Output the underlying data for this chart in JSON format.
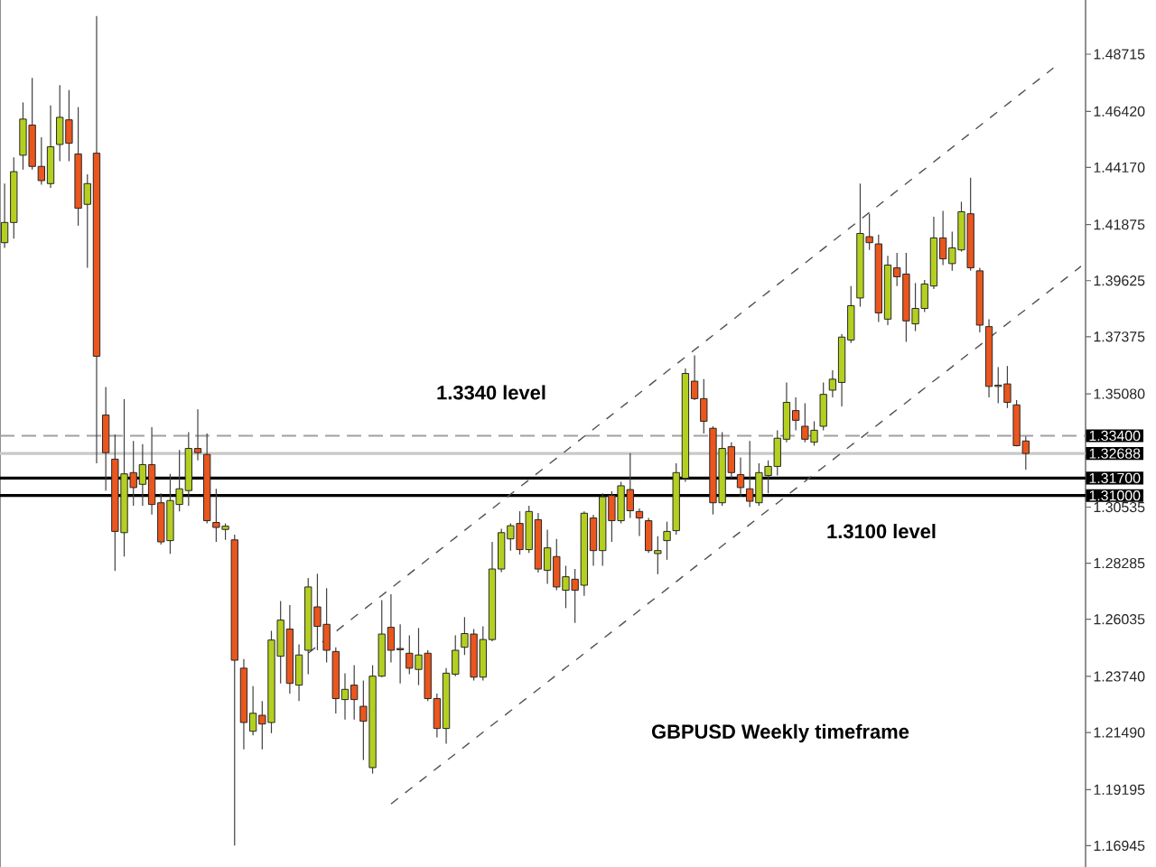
{
  "chart_data": {
    "type": "candlestick",
    "categories": [
      null,
      null,
      null,
      null,
      null,
      null,
      null,
      null,
      null,
      null,
      null,
      null,
      null,
      null,
      null,
      null,
      null,
      null,
      null,
      null,
      null,
      null,
      null,
      null,
      null,
      null,
      null,
      null,
      null,
      null,
      null,
      null,
      null,
      null,
      null,
      null,
      null,
      null,
      null,
      null,
      null,
      null,
      null,
      null,
      null,
      null,
      null,
      null,
      null,
      null,
      null,
      null,
      null,
      null,
      null,
      null,
      null,
      null,
      null,
      null,
      null,
      null,
      null,
      null,
      null,
      null,
      null,
      null,
      null,
      null,
      null,
      null,
      null,
      null,
      null,
      null,
      null,
      null,
      null,
      null,
      null,
      null,
      null,
      null,
      null,
      null,
      null,
      null,
      null,
      null,
      null,
      null,
      null,
      null,
      null,
      null,
      null,
      null,
      null,
      null,
      null,
      null,
      null,
      null,
      null,
      null,
      null,
      null,
      null,
      null,
      null,
      null,
      null,
      null,
      null,
      null,
      null,
      null
    ],
    "ohlc": [
      [
        1.4115,
        1.4352,
        1.4094,
        1.4196
      ],
      [
        1.4196,
        1.4457,
        1.4131,
        1.44
      ],
      [
        1.4466,
        1.4678,
        1.4408,
        1.4611
      ],
      [
        1.4587,
        1.4776,
        1.4408,
        1.4421
      ],
      [
        1.4421,
        1.4538,
        1.4348,
        1.4364
      ],
      [
        1.4352,
        1.4666,
        1.4335,
        1.45
      ],
      [
        1.4509,
        1.4747,
        1.4442,
        1.4618
      ],
      [
        1.4608,
        1.4727,
        1.4442,
        1.4514
      ],
      [
        1.4471,
        1.4659,
        1.4183,
        1.4253
      ],
      [
        1.4269,
        1.4389,
        1.4014,
        1.4352
      ],
      [
        1.4474,
        1.5025,
        1.3229,
        1.3659
      ],
      [
        1.3423,
        1.3536,
        1.312,
        1.3272
      ],
      [
        1.3246,
        1.3345,
        1.2798,
        1.2956
      ],
      [
        1.2951,
        1.3487,
        1.2855,
        1.3187
      ],
      [
        1.3192,
        1.3319,
        1.3059,
        1.3132
      ],
      [
        1.3145,
        1.3306,
        1.3059,
        1.3224
      ],
      [
        1.3224,
        1.3374,
        1.3024,
        1.3064
      ],
      [
        1.3071,
        1.3109,
        1.2903,
        1.2914
      ],
      [
        1.2919,
        1.3187,
        1.2866,
        1.308
      ],
      [
        1.3064,
        1.3283,
        1.3036,
        1.3127
      ],
      [
        1.312,
        1.3354,
        1.3059,
        1.3289
      ],
      [
        1.3289,
        1.3446,
        1.3241,
        1.3272
      ],
      [
        1.3265,
        1.3349,
        1.2988,
        1.2999
      ],
      [
        1.2992,
        1.3127,
        1.2914,
        1.2972
      ],
      [
        1.2964,
        1.2988,
        1.2922,
        1.2977
      ],
      [
        1.2922,
        1.2943,
        1.1695,
        1.2439
      ],
      [
        1.2407,
        1.2444,
        1.2081,
        1.2189
      ],
      [
        1.2154,
        1.2335,
        1.2137,
        1.2226
      ],
      [
        1.2218,
        1.2275,
        1.2081,
        1.2183
      ],
      [
        1.2189,
        1.2557,
        1.2146,
        1.252
      ],
      [
        1.2455,
        1.2677,
        1.2346,
        1.26
      ],
      [
        1.2564,
        1.266,
        1.2305,
        1.2346
      ],
      [
        1.2339,
        1.2503,
        1.2275,
        1.246
      ],
      [
        1.2479,
        1.2769,
        1.2383,
        1.2733
      ],
      [
        1.2653,
        1.2786,
        1.2479,
        1.2575
      ],
      [
        1.2583,
        1.2728,
        1.243,
        1.2479
      ],
      [
        1.2474,
        1.2491,
        1.2225,
        1.2285
      ],
      [
        1.2281,
        1.2387,
        1.2201,
        1.2322
      ],
      [
        1.2339,
        1.2419,
        1.2201,
        1.2281
      ],
      [
        1.2254,
        1.2358,
        1.2039,
        1.2194
      ],
      [
        1.2008,
        1.2419,
        1.1984,
        1.2375
      ],
      [
        1.2375,
        1.268,
        1.2371,
        1.2544
      ],
      [
        1.2571,
        1.2704,
        1.243,
        1.2479
      ],
      [
        1.2486,
        1.2583,
        1.2346,
        1.2481
      ],
      [
        1.2467,
        1.2539,
        1.2383,
        1.2407
      ],
      [
        1.2402,
        1.2568,
        1.2339,
        1.246
      ],
      [
        1.2467,
        1.2479,
        1.2275,
        1.2285
      ],
      [
        1.2285,
        1.2305,
        1.2129,
        1.2165
      ],
      [
        1.2165,
        1.2407,
        1.2104,
        1.2387
      ],
      [
        1.2383,
        1.2539,
        1.2375,
        1.2479
      ],
      [
        1.2491,
        1.2612,
        1.246,
        1.2546
      ],
      [
        1.2544,
        1.2564,
        1.2358,
        1.2371
      ],
      [
        1.2371,
        1.2575,
        1.2358,
        1.2522
      ],
      [
        1.2522,
        1.2914,
        1.2515,
        1.2805
      ],
      [
        1.2805,
        1.2967,
        1.2793,
        1.2951
      ],
      [
        1.2926,
        1.2988,
        1.2879,
        1.2979
      ],
      [
        1.2988,
        1.3037,
        1.2863,
        1.2883
      ],
      [
        1.2883,
        1.3059,
        1.287,
        1.3036
      ],
      [
        1.3003,
        1.303,
        1.2791,
        1.2805
      ],
      [
        1.28,
        1.2963,
        1.2745,
        1.289
      ],
      [
        1.2855,
        1.2926,
        1.272,
        1.2733
      ],
      [
        1.272,
        1.2818,
        1.2648,
        1.2774
      ],
      [
        1.2764,
        1.2805,
        1.2589,
        1.272
      ],
      [
        1.274,
        1.3036,
        1.2697,
        1.3029
      ],
      [
        1.301,
        1.3023,
        1.2818,
        1.2879
      ],
      [
        1.2879,
        1.3109,
        1.2818,
        1.3095
      ],
      [
        1.31,
        1.3117,
        1.2914,
        1.2999
      ],
      [
        1.2999,
        1.3155,
        1.2988,
        1.3139
      ],
      [
        1.3124,
        1.327,
        1.301,
        1.3039
      ],
      [
        1.3036,
        1.3048,
        1.2938,
        1.301
      ],
      [
        1.2999,
        1.301,
        1.287,
        1.2879
      ],
      [
        1.2867,
        1.2937,
        1.2784,
        1.2879
      ],
      [
        1.2919,
        1.2995,
        1.2842,
        1.2956
      ],
      [
        1.2959,
        1.3229,
        1.2943,
        1.3192
      ],
      [
        1.3169,
        1.361,
        1.3155,
        1.359
      ],
      [
        1.3559,
        1.3663,
        1.3483,
        1.3489
      ],
      [
        1.3489,
        1.3567,
        1.3349,
        1.3398
      ],
      [
        1.337,
        1.3378,
        1.3024,
        1.3071
      ],
      [
        1.3071,
        1.3354,
        1.3059,
        1.3289
      ],
      [
        1.3296,
        1.3314,
        1.3169,
        1.3192
      ],
      [
        1.3184,
        1.3253,
        1.3095,
        1.3132
      ],
      [
        1.3127,
        1.3319,
        1.3054,
        1.3077
      ],
      [
        1.3071,
        1.3229,
        1.3059,
        1.3192
      ],
      [
        1.318,
        1.3241,
        1.3109,
        1.3217
      ],
      [
        1.3217,
        1.3362,
        1.318,
        1.333
      ],
      [
        1.3326,
        1.3554,
        1.3314,
        1.3474
      ],
      [
        1.3441,
        1.3494,
        1.3362,
        1.3402
      ],
      [
        1.3378,
        1.347,
        1.3314,
        1.3326
      ],
      [
        1.3314,
        1.3398,
        1.33,
        1.3362
      ],
      [
        1.3378,
        1.3554,
        1.3362,
        1.3506
      ],
      [
        1.3523,
        1.3603,
        1.3494,
        1.3567
      ],
      [
        1.3554,
        1.3748,
        1.3458,
        1.3736
      ],
      [
        1.3724,
        1.3941,
        1.3712,
        1.3862
      ],
      [
        1.3893,
        1.4352,
        1.3858,
        1.4152
      ],
      [
        1.4139,
        1.4231,
        1.4086,
        1.4115
      ],
      [
        1.411,
        1.4147,
        1.3797,
        1.3833
      ],
      [
        1.3808,
        1.4062,
        1.3784,
        1.4025
      ],
      [
        1.4014,
        1.4074,
        1.3941,
        1.3978
      ],
      [
        1.3989,
        1.4074,
        1.3717,
        1.3801
      ],
      [
        1.3789,
        1.3953,
        1.376,
        1.3851
      ],
      [
        1.3851,
        1.3965,
        1.3837,
        1.3949
      ],
      [
        1.3941,
        1.4219,
        1.3929,
        1.4134
      ],
      [
        1.4134,
        1.4243,
        1.4025,
        1.405
      ],
      [
        1.4031,
        1.4159,
        1.4002,
        1.4094
      ],
      [
        1.4086,
        1.4279,
        1.4079,
        1.4239
      ],
      [
        1.4231,
        1.4376,
        1.4002,
        1.4014
      ],
      [
        1.4002,
        1.4014,
        1.3755,
        1.3784
      ],
      [
        1.3778,
        1.3808,
        1.3494,
        1.3538
      ],
      [
        1.3538,
        1.3615,
        1.347,
        1.3543
      ],
      [
        1.3548,
        1.362,
        1.3451,
        1.3474
      ],
      [
        1.3464,
        1.3483,
        1.3297,
        1.33
      ],
      [
        1.3319,
        1.3337,
        1.3204,
        1.3269
      ],
      null,
      null,
      null,
      null,
      null,
      null
    ],
    "colors": [
      "#b5cf20",
      "#b5cf20",
      "#b5cf20",
      "#ea561d",
      "#ea561d",
      "#b5cf20",
      "#b5cf20",
      "#ea561d",
      "#ea561d",
      "#b5cf20",
      "#ea561d",
      "#ea561d",
      "#ea561d",
      "#b5cf20",
      "#ea561d",
      "#b5cf20",
      "#ea561d",
      "#ea561d",
      "#b5cf20",
      "#b5cf20",
      "#b5cf20",
      "#ea561d",
      "#ea561d",
      "#ea561d",
      "#b5cf20",
      "#ea561d",
      "#ea561d",
      "#b5cf20",
      "#ea561d",
      "#b5cf20",
      "#b5cf20",
      "#ea561d",
      "#b5cf20",
      "#b5cf20",
      "#ea561d",
      "#ea561d",
      "#ea561d",
      "#b5cf20",
      "#ea561d",
      "#ea561d",
      "#b5cf20",
      "#b5cf20",
      "#ea561d",
      "#ea561d",
      "#ea561d",
      "#b5cf20",
      "#ea561d",
      "#ea561d",
      "#b5cf20",
      "#b5cf20",
      "#b5cf20",
      "#ea561d",
      "#b5cf20",
      "#b5cf20",
      "#b5cf20",
      "#b5cf20",
      "#ea561d",
      "#b5cf20",
      "#ea561d",
      "#b5cf20",
      "#ea561d",
      "#b5cf20",
      "#ea561d",
      "#b5cf20",
      "#ea561d",
      "#b5cf20",
      "#ea561d",
      "#b5cf20",
      "#ea561d",
      "#ea561d",
      "#ea561d",
      "#b5cf20",
      "#b5cf20",
      "#b5cf20",
      "#b5cf20",
      "#ea561d",
      "#ea561d",
      "#ea561d",
      "#b5cf20",
      "#ea561d",
      "#ea561d",
      "#ea561d",
      "#b5cf20",
      "#b5cf20",
      "#b5cf20",
      "#b5cf20",
      "#ea561d",
      "#ea561d",
      "#b5cf20",
      "#b5cf20",
      "#b5cf20",
      "#b5cf20",
      "#b5cf20",
      "#b5cf20",
      "#ea561d",
      "#ea561d",
      "#b5cf20",
      "#ea561d",
      "#ea561d",
      "#b5cf20",
      "#b5cf20",
      "#b5cf20",
      "#ea561d",
      "#b5cf20",
      "#b5cf20",
      "#ea561d",
      "#ea561d",
      "#ea561d",
      "#b5cf20",
      "#ea561d",
      "#ea561d",
      "#ea561d",
      null,
      null,
      null,
      null,
      null,
      null
    ],
    "series": [
      {
        "type": "line",
        "color": "#505050",
        "line_style": "dashed",
        "values": [
          null,
          null,
          null,
          null,
          null,
          null,
          null,
          null,
          null,
          null,
          null,
          null,
          null,
          null,
          null,
          null,
          null,
          null,
          null,
          null,
          null,
          null,
          null,
          null,
          null,
          null,
          null,
          null,
          null,
          null,
          null,
          null,
          null,
          1.2467,
          1.2496,
          1.2525,
          1.2554,
          1.2583,
          1.2612,
          1.2641,
          1.267,
          1.2699,
          1.2728,
          1.2757,
          1.2786,
          1.2815,
          1.2844,
          1.2873,
          1.2902,
          1.2931,
          1.296,
          1.2989,
          1.3018,
          1.3047,
          1.3076,
          1.3105,
          1.3134,
          1.3163,
          1.3192,
          1.3221,
          1.325,
          1.3279,
          1.3308,
          1.3337,
          1.3366,
          1.3395,
          1.3424,
          1.3453,
          1.3482,
          1.3511,
          1.354,
          1.3569,
          1.3598,
          1.3627,
          1.3656,
          1.3685,
          1.3714,
          1.3743,
          1.3772,
          1.3801,
          1.383,
          1.3859,
          1.3888,
          1.3917,
          1.3946,
          1.3975,
          1.4004,
          1.4033,
          1.4062,
          1.4091,
          1.412,
          1.4149,
          1.4178,
          1.4207,
          1.4236,
          1.4265,
          1.4294,
          1.4323,
          1.4352,
          1.4381,
          1.441,
          1.4439,
          1.4468,
          1.4497,
          1.4526,
          1.4555,
          1.4584,
          1.4613,
          1.4642,
          1.4671,
          1.47,
          1.4729,
          1.4758,
          1.4787,
          1.4816,
          null,
          null,
          null
        ]
      },
      {
        "type": "line",
        "color": "#505050",
        "line_style": "dashed",
        "values": [
          null,
          null,
          null,
          null,
          null,
          null,
          null,
          null,
          null,
          null,
          null,
          null,
          null,
          null,
          null,
          null,
          null,
          null,
          null,
          null,
          null,
          null,
          null,
          null,
          null,
          null,
          null,
          null,
          null,
          null,
          null,
          null,
          null,
          null,
          null,
          null,
          null,
          null,
          null,
          null,
          null,
          null,
          1.1862,
          1.1891,
          1.192,
          1.1948,
          1.1977,
          1.2006,
          1.2035,
          1.2063,
          1.2092,
          1.2121,
          1.215,
          1.2179,
          1.2207,
          1.2236,
          1.2265,
          1.2294,
          1.2322,
          1.2351,
          1.238,
          1.2409,
          1.2437,
          1.2466,
          1.2495,
          1.2524,
          1.2553,
          1.2581,
          1.261,
          1.2639,
          1.2668,
          1.2696,
          1.2725,
          1.2754,
          1.2783,
          1.2812,
          1.284,
          1.2869,
          1.2898,
          1.2927,
          1.2955,
          1.2984,
          1.3013,
          1.3042,
          1.307,
          1.3099,
          1.3128,
          1.3157,
          1.3186,
          1.3214,
          1.3243,
          1.3272,
          1.3301,
          1.3329,
          1.3358,
          1.3387,
          1.3416,
          1.3445,
          1.3473,
          1.3502,
          1.3531,
          1.356,
          1.3588,
          1.3617,
          1.3646,
          1.3675,
          1.3703,
          1.3732,
          1.3761,
          1.379,
          1.3819,
          1.3847,
          1.3876,
          1.3905,
          1.3934,
          1.3962,
          1.3991,
          1.402
        ]
      }
    ],
    "ylim": [
      1.1609,
      1.5089
    ],
    "yticks": [
      {
        "value": 1.48715,
        "label": "1.48715"
      },
      {
        "value": 1.4642,
        "label": "1.46420"
      },
      {
        "value": 1.4417,
        "label": "1.44170"
      },
      {
        "value": 1.41875,
        "label": "1.41875"
      },
      {
        "value": 1.39625,
        "label": "1.39625"
      },
      {
        "value": 1.37375,
        "label": "1.37375"
      },
      {
        "value": 1.3508,
        "label": "1.35080"
      },
      {
        "value": 1.30535,
        "label": "1.30535"
      },
      {
        "value": 1.28285,
        "label": "1.28285"
      },
      {
        "value": 1.26035,
        "label": "1.26035"
      },
      {
        "value": 1.2374,
        "label": "1.23740"
      },
      {
        "value": 1.2149,
        "label": "1.21490"
      },
      {
        "value": 1.19195,
        "label": "1.19195"
      },
      {
        "value": 1.16945,
        "label": "1.16945"
      }
    ],
    "tick_labels": "y",
    "ref_lines": [
      {
        "axis": "y",
        "value": 1.334,
        "label": "1.33400",
        "color": "#a0a0a0",
        "line_style": "dashed"
      },
      {
        "axis": "y",
        "value": 1.32688,
        "label": "1.32688",
        "color": "#c8c8c8",
        "line_style": "solid"
      },
      {
        "axis": "y",
        "value": 1.317,
        "label": "1.31700",
        "color": "#000000",
        "line_style": "solid"
      },
      {
        "axis": "y",
        "value": 1.31,
        "label": "1.31000",
        "color": "#000000",
        "line_style": "solid"
      }
    ],
    "annotations": [
      {
        "text": "1.3340 level",
        "y": 1.334
      },
      {
        "text": "1.3100 level",
        "y": 1.31
      },
      "GBPUSD Weekly timeframe"
    ]
  }
}
